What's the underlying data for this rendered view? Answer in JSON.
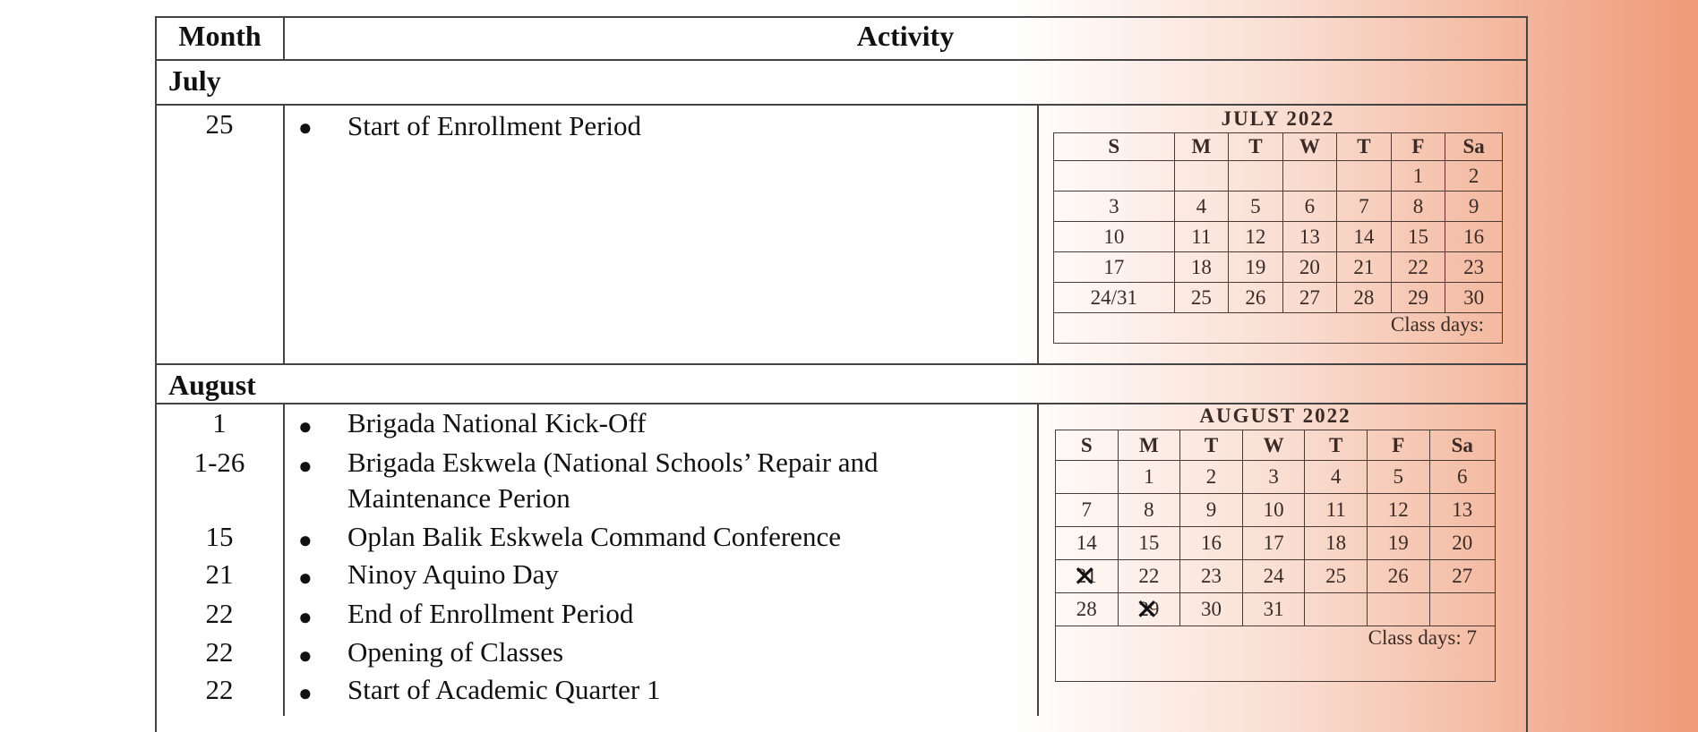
{
  "header": {
    "month": "Month",
    "activity": "Activity"
  },
  "july": {
    "label": "July",
    "entries": [
      {
        "day": "25",
        "activity": "Start of Enrollment Period"
      }
    ],
    "calendar": {
      "title": "JULY 2022",
      "weekdays": [
        "S",
        "M",
        "T",
        "W",
        "T",
        "F",
        "Sa"
      ],
      "weeks": [
        [
          "",
          "",
          "",
          "",
          "",
          "1",
          "2"
        ],
        [
          "3",
          "4",
          "5",
          "6",
          "7",
          "8",
          "9"
        ],
        [
          "10",
          "11",
          "12",
          "13",
          "14",
          "15",
          "16"
        ],
        [
          "17",
          "18",
          "19",
          "20",
          "21",
          "22",
          "23"
        ],
        [
          "24/31",
          "25",
          "26",
          "27",
          "28",
          "29",
          "30"
        ]
      ],
      "class_days": "Class days:"
    }
  },
  "august": {
    "label": "August",
    "entries": [
      {
        "day": "1",
        "activity": "Brigada National Kick-Off"
      },
      {
        "day": "1-26",
        "activity": "Brigada Eskwela (National Schools’ Repair and",
        "activity_cont": "Maintenance Perion"
      },
      {
        "day": "15",
        "activity": "Oplan Balik Eskwela Command Conference"
      },
      {
        "day": "21",
        "activity": "Ninoy Aquino Day"
      },
      {
        "day": "22",
        "activity": "End of Enrollment Period"
      },
      {
        "day": "22",
        "activity": "Opening of Classes"
      },
      {
        "day": "22",
        "activity": "Start of Academic Quarter 1"
      }
    ],
    "calendar": {
      "title": "AUGUST 2022",
      "weekdays": [
        "S",
        "M",
        "T",
        "W",
        "T",
        "F",
        "Sa"
      ],
      "weeks": [
        [
          "",
          "1",
          "2",
          "3",
          "4",
          "5",
          "6"
        ],
        [
          "7",
          "8",
          "9",
          "10",
          "11",
          "12",
          "13"
        ],
        [
          "14",
          "15",
          "16",
          "17",
          "18",
          "19",
          "20"
        ],
        [
          "21",
          "22",
          "23",
          "24",
          "25",
          "26",
          "27"
        ],
        [
          "28",
          "29",
          "30",
          "31",
          "",
          "",
          ""
        ]
      ],
      "crossed": [
        "21",
        "29"
      ],
      "class_days": "Class days: 7"
    }
  }
}
